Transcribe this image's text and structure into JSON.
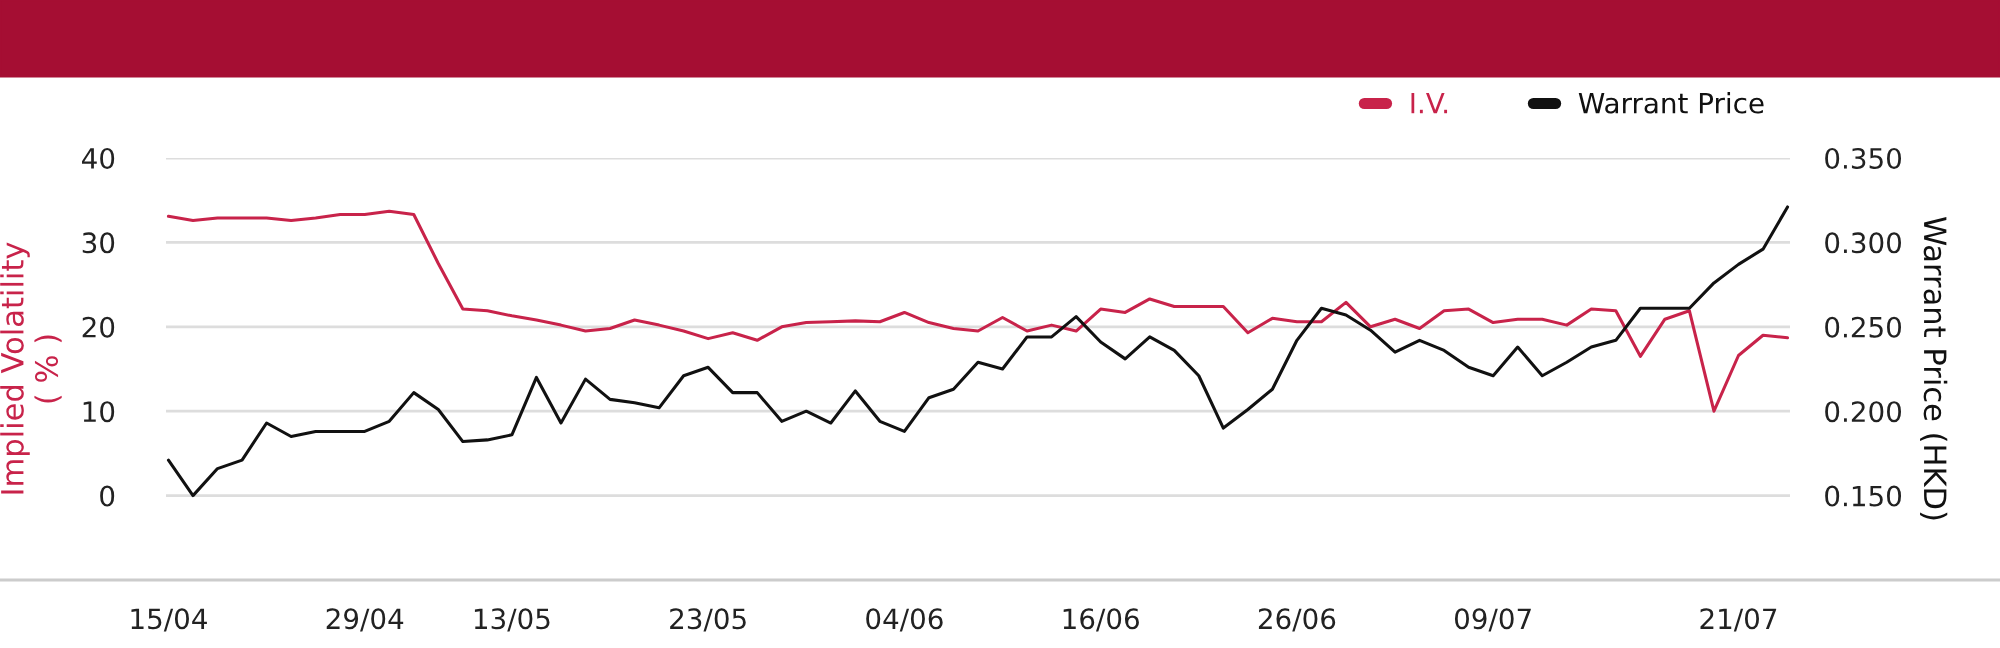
{
  "chart_data": {
    "type": "line",
    "categories": [
      "15/04",
      null,
      null,
      null,
      null,
      null,
      null,
      null,
      "29/04",
      null,
      null,
      null,
      null,
      null,
      "13/05",
      null,
      null,
      null,
      null,
      null,
      null,
      null,
      "23/05",
      null,
      null,
      null,
      null,
      null,
      null,
      null,
      "04/06",
      null,
      null,
      null,
      null,
      null,
      null,
      null,
      "16/06",
      null,
      null,
      null,
      null,
      null,
      null,
      null,
      "26/06",
      null,
      null,
      null,
      null,
      null,
      null,
      null,
      "09/07",
      null,
      null,
      null,
      null,
      null,
      null,
      null,
      null,
      null,
      "21/07",
      null,
      null
    ],
    "series": [
      {
        "name": "I.V.",
        "color": "#c8234a",
        "values": [
          33.1,
          32.6,
          32.9,
          32.9,
          32.9,
          32.6,
          32.9,
          33.3,
          33.3,
          33.7,
          33.3,
          27.5,
          22.1,
          21.9,
          21.3,
          20.8,
          20.2,
          19.5,
          19.8,
          20.8,
          20.2,
          19.5,
          18.6,
          19.3,
          18.4,
          20.0,
          20.5,
          20.6,
          20.7,
          20.6,
          21.7,
          20.5,
          19.8,
          19.5,
          21.1,
          19.5,
          20.2,
          19.5,
          22.1,
          21.7,
          23.3,
          22.4,
          22.4,
          22.4,
          19.3,
          21.0,
          20.6,
          20.6,
          22.9,
          20.0,
          20.9,
          19.8,
          21.9,
          22.1,
          20.5,
          20.9,
          20.9,
          20.2,
          22.1,
          21.9,
          16.5,
          20.9,
          21.9,
          10.0,
          16.6,
          19.0,
          18.7
        ]
      },
      {
        "name": "Warrant Price",
        "color": "#111111",
        "axis": "y2",
        "values": [
          0.171,
          0.15,
          0.166,
          0.171,
          0.193,
          0.185,
          0.188,
          0.188,
          0.188,
          0.194,
          0.211,
          0.201,
          0.182,
          0.183,
          0.186,
          0.22,
          0.193,
          0.219,
          0.207,
          0.205,
          0.202,
          0.221,
          0.226,
          0.211,
          0.211,
          0.194,
          0.2,
          0.193,
          0.212,
          0.194,
          0.188,
          0.208,
          0.213,
          0.229,
          0.225,
          0.244,
          0.244,
          0.256,
          0.241,
          0.231,
          0.244,
          0.236,
          0.221,
          0.19,
          0.201,
          0.213,
          0.242,
          0.261,
          0.257,
          0.248,
          0.235,
          0.242,
          0.236,
          0.226,
          0.221,
          0.238,
          0.221,
          0.229,
          0.238,
          0.242,
          0.261,
          0.261,
          0.261,
          0.276,
          0.287,
          0.296,
          0.321
        ]
      }
    ],
    "ylabel": "Implied Volatility\n( % )",
    "y2label": "Warrant Price (HKD)",
    "ylim": [
      -10,
      40
    ],
    "yticks": [
      0,
      10,
      20,
      30,
      40
    ],
    "y2lim": [
      0.1,
      0.35
    ],
    "y2ticks": [
      {
        "value": 0.15,
        "label": "0.150"
      },
      {
        "value": 0.2,
        "label": "0.200"
      },
      {
        "value": 0.25,
        "label": "0.250"
      },
      {
        "value": 0.3,
        "label": "0.300"
      },
      {
        "value": 0.35,
        "label": "0.350"
      }
    ],
    "grid": "y",
    "legend": "top right",
    "marker": "none",
    "line_style": "solid"
  }
}
